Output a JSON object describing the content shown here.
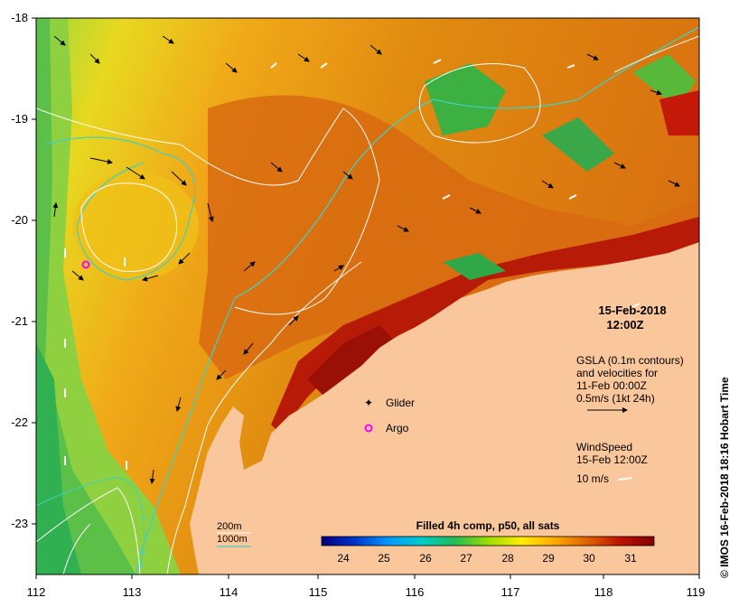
{
  "map": {
    "date_title": "15-Feb-2018",
    "time_title": "12:00Z",
    "lon_ticks": [
      "112",
      "113",
      "114",
      "115",
      "116",
      "117",
      "118",
      "119"
    ],
    "lat_ticks": [
      "-18",
      "-19",
      "-20",
      "-21",
      "-22",
      "-23"
    ],
    "gsla_lines": [
      "GSLA (0.1m contours)",
      "and velocities for",
      "11-Feb 00:00Z",
      "0.5m/s (1kt 24h)"
    ],
    "wind_lines": [
      "WindSpeed",
      "15-Feb 12:00Z",
      "10 m/s"
    ],
    "glider_label": "Glider",
    "argo_label": "Argo",
    "depth_200": "200m",
    "depth_1000": "1000m",
    "colorbar_title": "Filled 4h comp, p50, all sats",
    "colorbar_ticks": [
      "24",
      "25",
      "26",
      "27",
      "28",
      "29",
      "30",
      "31"
    ],
    "credit": "© IMOS 16-Feb-2018 18:16 Hobart Time",
    "colors": {
      "land": "#f9c79b",
      "isobath_1000": "#40d0c0",
      "gsla_contour": "#ffffff",
      "glider": "#cc00cc",
      "argo": "#ff00ff",
      "colorbar": [
        "#00007a",
        "#0033cc",
        "#0099ff",
        "#00cccc",
        "#22bb55",
        "#99dd00",
        "#ffee00",
        "#ffaa00",
        "#e06000",
        "#c01000",
        "#800000"
      ]
    }
  }
}
